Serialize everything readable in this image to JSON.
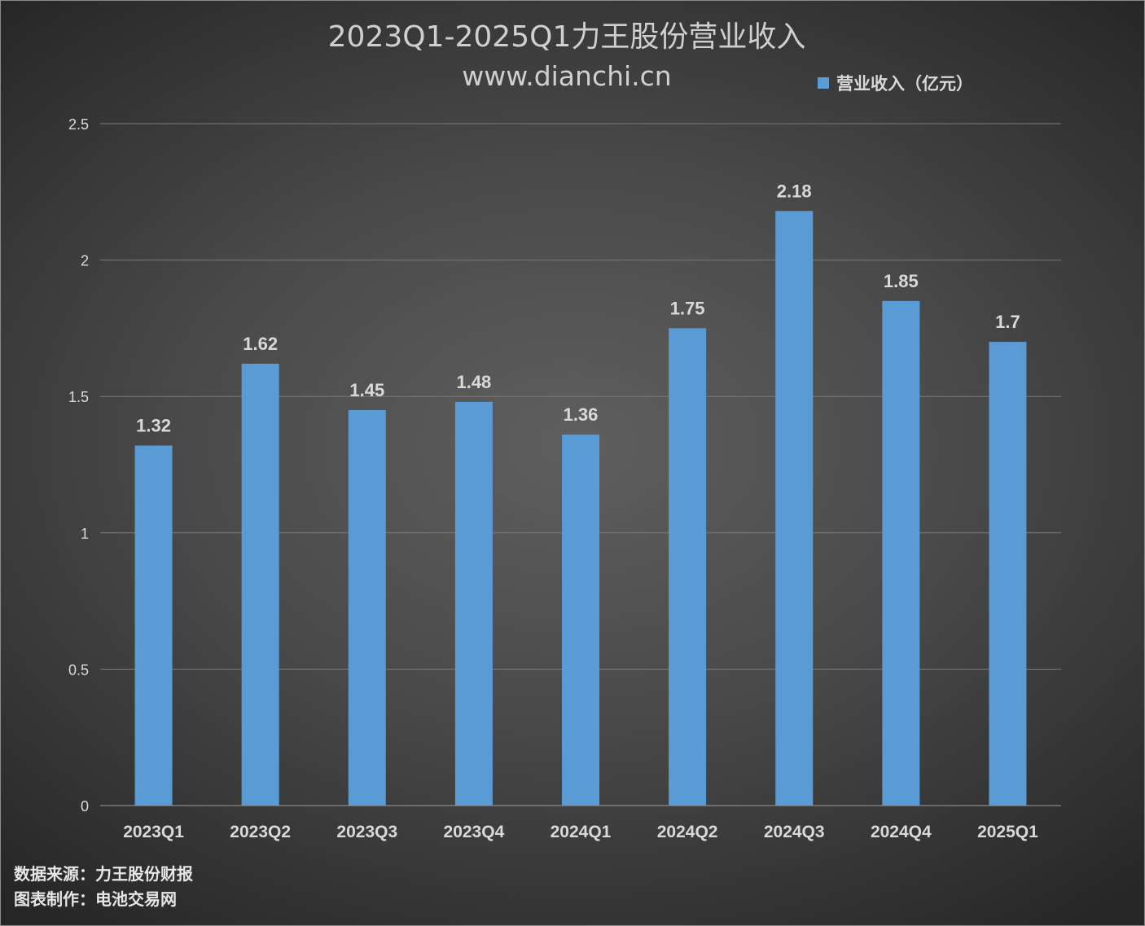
{
  "chart_data": {
    "type": "bar",
    "title": "2023Q1-2025Q1力王股份营业收入",
    "subtitle": "www.dianchi.cn",
    "categories": [
      "2023Q1",
      "2023Q2",
      "2023Q3",
      "2023Q4",
      "2024Q1",
      "2024Q2",
      "2024Q3",
      "2024Q4",
      "2025Q1"
    ],
    "series": [
      {
        "name": "营业收入（亿元）",
        "values": [
          1.32,
          1.62,
          1.45,
          1.48,
          1.36,
          1.75,
          2.18,
          1.85,
          1.7
        ],
        "color": "#5b9bd5"
      }
    ],
    "data_labels": [
      "1.32",
      "1.62",
      "1.45",
      "1.48",
      "1.36",
      "1.75",
      "2.18",
      "1.85",
      "1.7"
    ],
    "yticks": [
      "0",
      "0.5",
      "1",
      "1.5",
      "2",
      "2.5"
    ],
    "ylim": [
      0,
      2.5
    ],
    "xlabel": "",
    "ylabel": "",
    "grid": true,
    "legend_position": "top-right"
  },
  "footnotes": {
    "source": "数据来源：力王股份财报",
    "maker": "图表制作：电池交易网"
  },
  "colors": {
    "bar": "#5b9bd5",
    "gridline": "#7a7a7a",
    "text": "#d9d9d9"
  }
}
